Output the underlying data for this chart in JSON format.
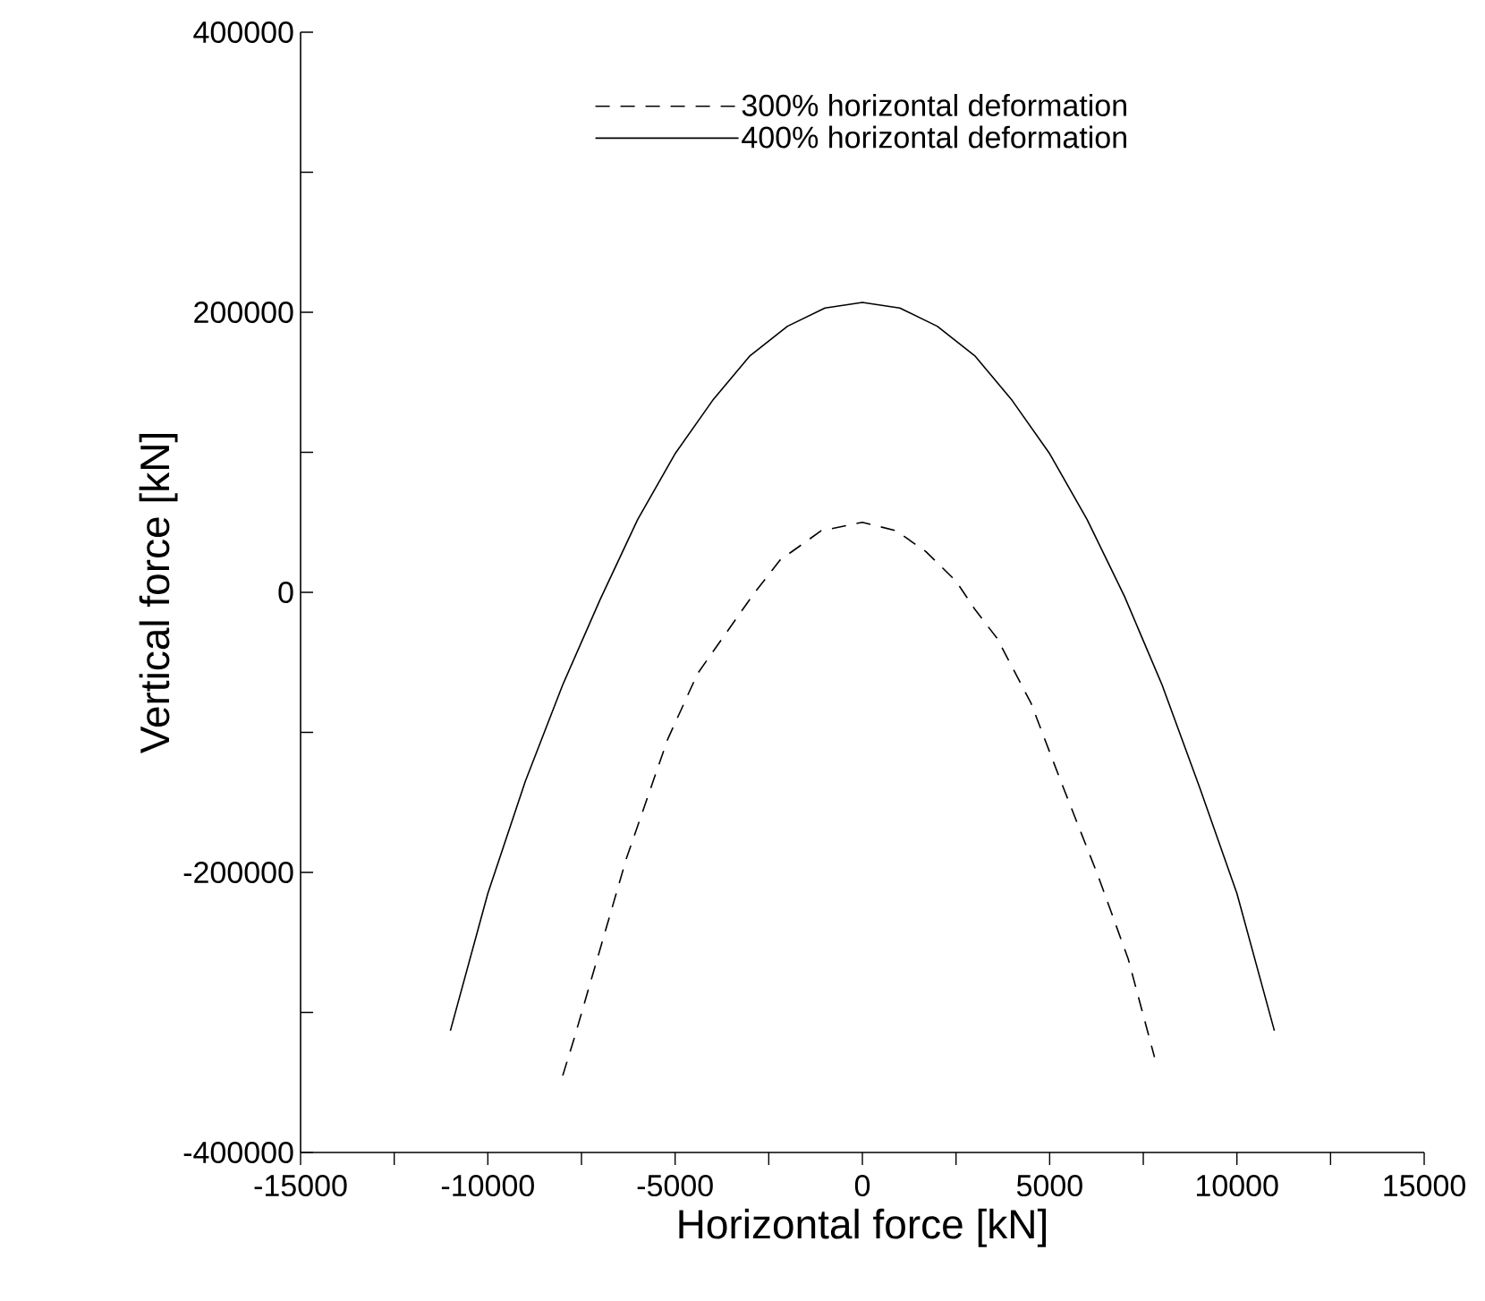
{
  "chart_data": {
    "type": "line",
    "xlabel": "Horizontal force [kN]",
    "ylabel": "Vertical force [kN]",
    "xlim": [
      -15000,
      15000
    ],
    "ylim": [
      -400000,
      400000
    ],
    "xticks": [
      -15000,
      {
        "value": -12500,
        "label": null
      },
      -10000,
      {
        "value": -7500,
        "label": null
      },
      -5000,
      {
        "value": -2500,
        "label": null
      },
      0,
      {
        "value": 2500,
        "label": null
      },
      5000,
      {
        "value": 7500,
        "label": null
      },
      10000,
      {
        "value": 12500,
        "label": null
      },
      15000
    ],
    "yticks": [
      -400000,
      {
        "value": -300000,
        "label": null
      },
      -200000,
      {
        "value": -100000,
        "label": null
      },
      0,
      {
        "value": 100000,
        "label": null
      },
      200000,
      {
        "value": 300000,
        "label": null
      },
      400000
    ],
    "legend": "top",
    "grid": false,
    "series": [
      {
        "name": "300% horizontal deformation",
        "color": "#000000",
        "line_style": "dashed",
        "x": [
          -8000,
          -7700,
          -6300,
          -5200,
          -4400,
          -3400,
          -2900,
          -2200,
          -1100,
          0,
          900,
          1700,
          2500,
          3000,
          3600,
          4500,
          5300,
          6300,
          7100,
          7800
        ],
        "values": [
          -345000,
          -319000,
          -190000,
          -105000,
          -58000,
          -20000,
          -1000,
          23000,
          44000,
          50000,
          44000,
          29000,
          8000,
          -12000,
          -33000,
          -79000,
          -135000,
          -203000,
          -262000,
          -332000
        ]
      },
      {
        "name": "400% horizontal deformation",
        "color": "#000000",
        "line_style": "solid",
        "x": [
          -11000,
          -10000,
          -9000,
          -8000,
          -7000,
          -6000,
          -5000,
          -4000,
          -3000,
          -2000,
          -1000,
          0,
          1000,
          2000,
          3000,
          4000,
          5000,
          6000,
          7000,
          8000,
          9000,
          10000,
          11000
        ],
        "values": [
          -313000,
          -215000,
          -135000,
          -66000,
          -5000,
          52000,
          99000,
          137000,
          169000,
          190000,
          203000,
          207000,
          203000,
          190000,
          169000,
          137000,
          99000,
          52000,
          -3000,
          -66000,
          -139000,
          -215000,
          -313000
        ]
      }
    ]
  }
}
